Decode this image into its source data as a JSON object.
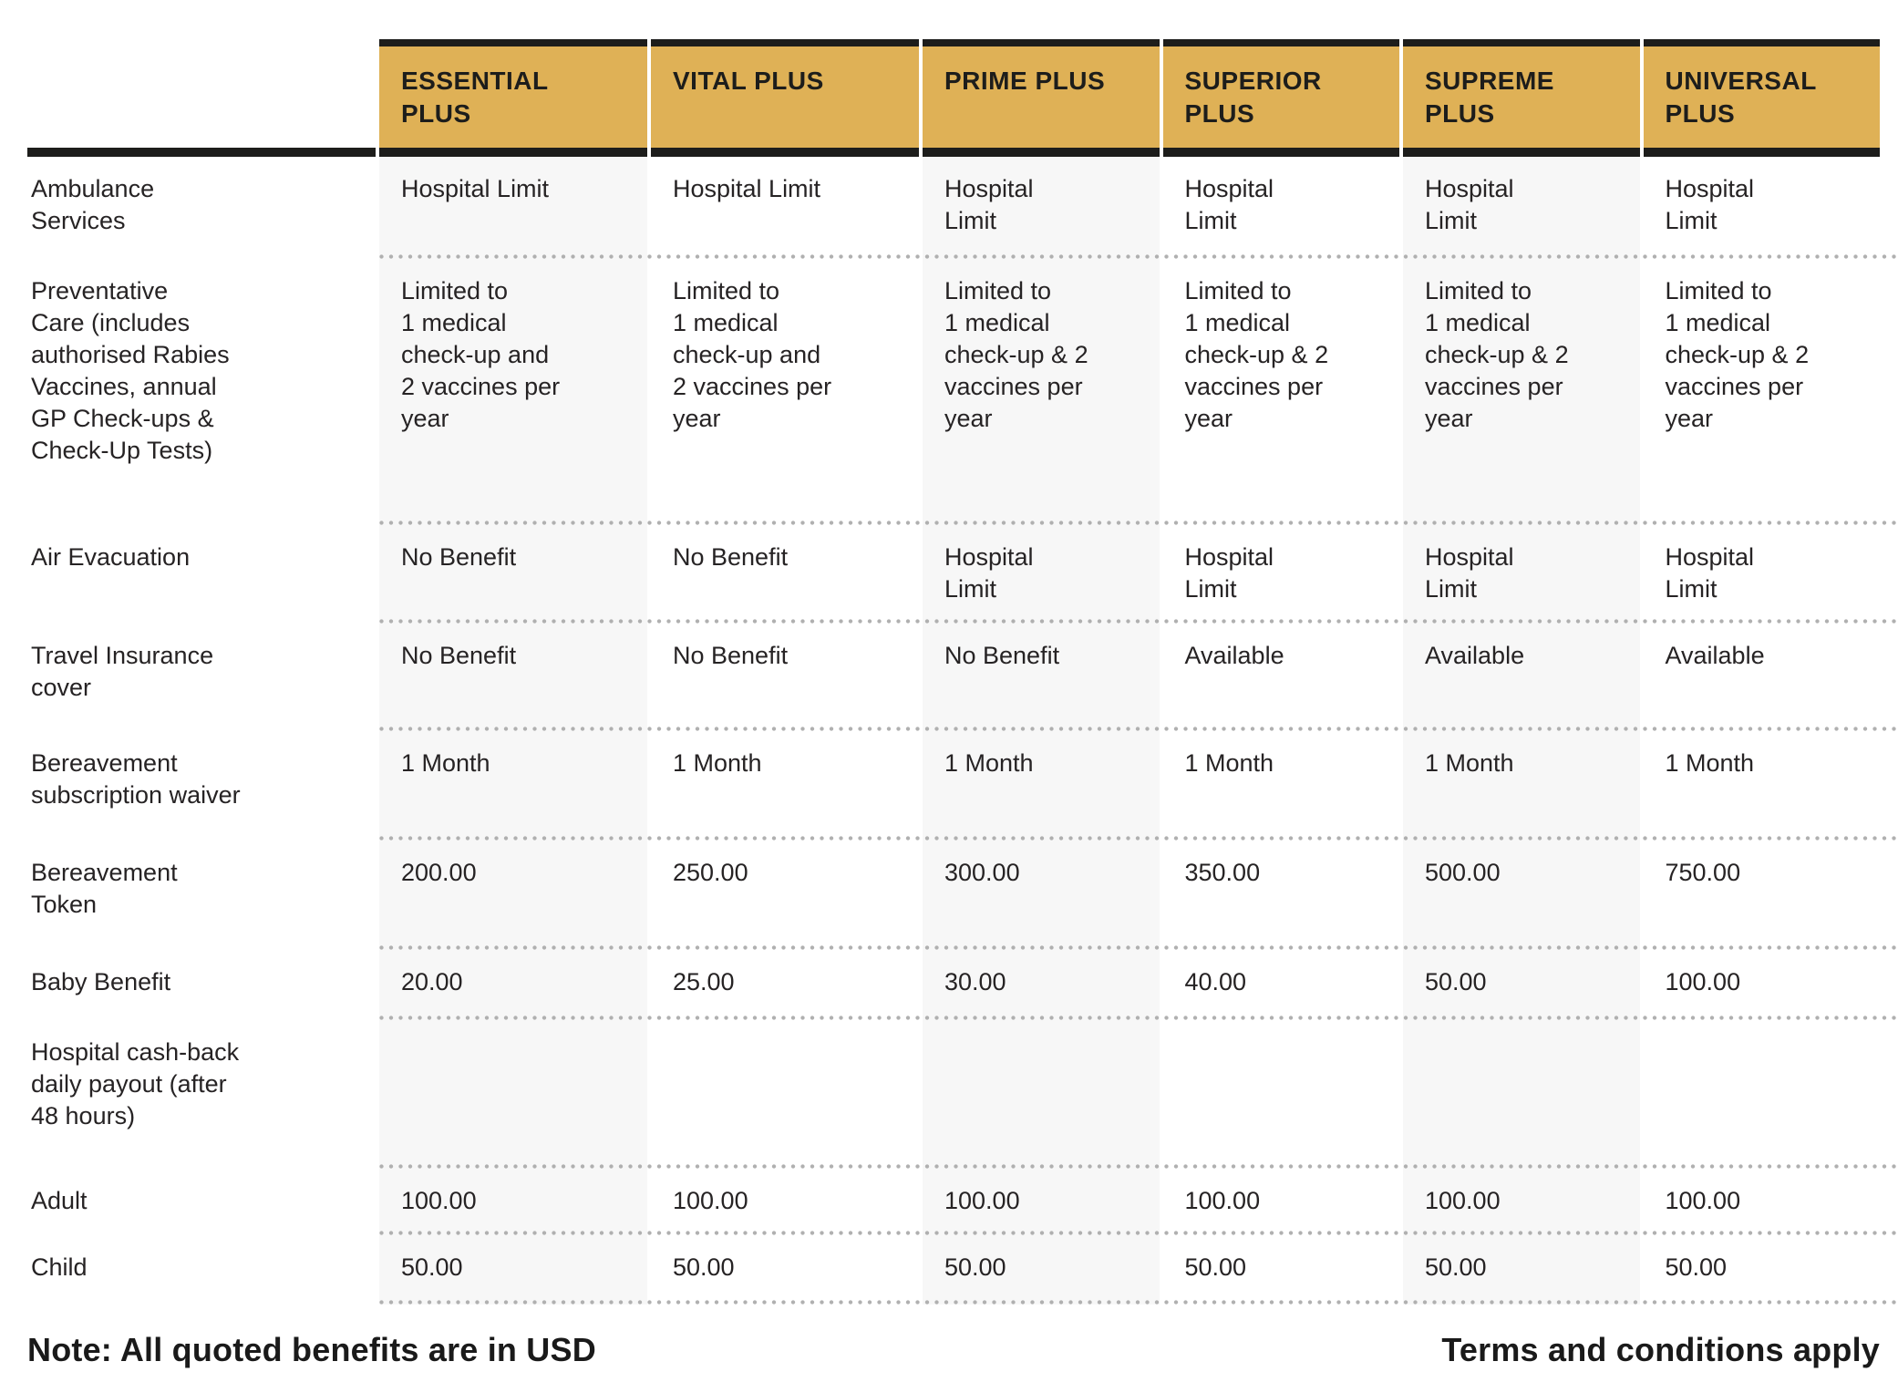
{
  "colors": {
    "header_gold": "#DFB156",
    "ink_black": "#1D1D1B",
    "cell_shade": "#F7F7F7",
    "dot_gray": "#B0B0B0"
  },
  "header": {
    "columns": [
      "ESSENTIAL\nPLUS",
      "VITAL PLUS",
      "PRIME PLUS",
      "SUPERIOR\nPLUS",
      "SUPREME\nPLUS",
      "UNIVERSAL\nPLUS"
    ]
  },
  "rows": [
    {
      "label": "Ambulance\nServices",
      "values": [
        "Hospital Limit",
        "Hospital Limit",
        "Hospital\nLimit",
        "Hospital\nLimit",
        "Hospital\nLimit",
        "Hospital\nLimit"
      ]
    },
    {
      "label": "Preventative\nCare (includes\nauthorised Rabies\nVaccines, annual\nGP Check-ups &\nCheck-Up Tests)",
      "values": [
        "Limited to\n1 medical\ncheck-up and\n2 vaccines per\nyear",
        "Limited to\n1 medical\ncheck-up and\n2 vaccines per\nyear",
        "Limited to\n1 medical\ncheck-up & 2\nvaccines per\nyear",
        "Limited to\n1 medical\ncheck-up & 2\nvaccines per\nyear",
        "Limited to\n1 medical\ncheck-up & 2\nvaccines per\nyear",
        "Limited to\n1 medical\ncheck-up & 2\nvaccines per\nyear"
      ]
    },
    {
      "label": "Air Evacuation",
      "values": [
        "No Benefit",
        "No Benefit",
        "Hospital\nLimit",
        "Hospital\nLimit",
        "Hospital\nLimit",
        "Hospital\nLimit"
      ]
    },
    {
      "label": "Travel Insurance\ncover",
      "values": [
        "No Benefit",
        "No Benefit",
        "No Benefit",
        "Available",
        "Available",
        "Available"
      ]
    },
    {
      "label": "Bereavement\nsubscription waiver",
      "values": [
        "1 Month",
        "1 Month",
        "1 Month",
        "1 Month",
        "1 Month",
        "1 Month"
      ]
    },
    {
      "label": "Bereavement\nToken",
      "values": [
        "200.00",
        "250.00",
        "300.00",
        "350.00",
        "500.00",
        "750.00"
      ]
    },
    {
      "label": "Baby Benefit",
      "values": [
        "20.00",
        "25.00",
        "30.00",
        "40.00",
        "50.00",
        "100.00"
      ]
    },
    {
      "label": "Hospital cash-back\ndaily payout (after\n48 hours)",
      "values": [
        "",
        "",
        "",
        "",
        "",
        ""
      ]
    },
    {
      "label": "Adult",
      "values": [
        "100.00",
        "100.00",
        "100.00",
        "100.00",
        "100.00",
        "100.00"
      ]
    },
    {
      "label": "Child",
      "values": [
        "50.00",
        "50.00",
        "50.00",
        "50.00",
        "50.00",
        "50.00"
      ]
    }
  ],
  "footer": {
    "left_note": "Note: All quoted benefits are in USD",
    "right_note": "Terms and conditions apply"
  }
}
